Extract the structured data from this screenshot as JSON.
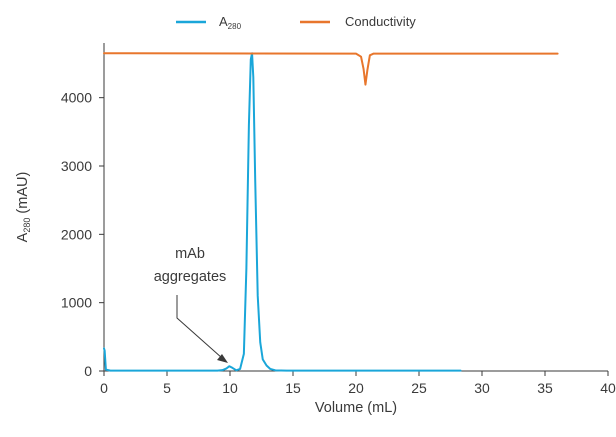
{
  "chart_data": {
    "type": "line",
    "xlabel": "Volume (mL)",
    "ylabel": {
      "main": "A",
      "sub": "280",
      "unit": " (mAU)"
    },
    "xlim": [
      0,
      40
    ],
    "ylim": [
      0,
      4800
    ],
    "x_ticks": [
      0,
      5,
      10,
      15,
      20,
      25,
      30,
      35,
      40
    ],
    "y_ticks": [
      0,
      1000,
      2000,
      3000,
      4000
    ],
    "grid": false,
    "legend_position": "top",
    "series": [
      {
        "name": "A",
        "name_sub": "280",
        "color": "#1aa6d9",
        "x": [
          0,
          0.05,
          0.15,
          0.5,
          5,
          9.0,
          9.4,
          9.7,
          9.95,
          10.2,
          10.5,
          10.8,
          11.1,
          11.3,
          11.5,
          11.65,
          11.75,
          11.85,
          12.0,
          12.2,
          12.4,
          12.6,
          12.9,
          13.2,
          13.6,
          14.5,
          20,
          28.3
        ],
        "y": [
          330,
          300,
          20,
          5,
          5,
          5,
          12,
          35,
          70,
          45,
          10,
          30,
          250,
          1500,
          3600,
          4560,
          4650,
          4300,
          2800,
          1100,
          420,
          170,
          80,
          30,
          10,
          5,
          5,
          5
        ]
      },
      {
        "name": "Conductivity",
        "color": "#e8762c",
        "x": [
          0,
          20.0,
          20.4,
          20.6,
          20.75,
          20.9,
          21.1,
          21.4,
          36
        ],
        "y": [
          4650,
          4645,
          4600,
          4420,
          4190,
          4400,
          4620,
          4645,
          4645
        ]
      }
    ],
    "annotations": [
      {
        "lines": [
          "mAb",
          "aggregates"
        ],
        "target": {
          "x": 9.95,
          "y": 90
        }
      }
    ]
  }
}
